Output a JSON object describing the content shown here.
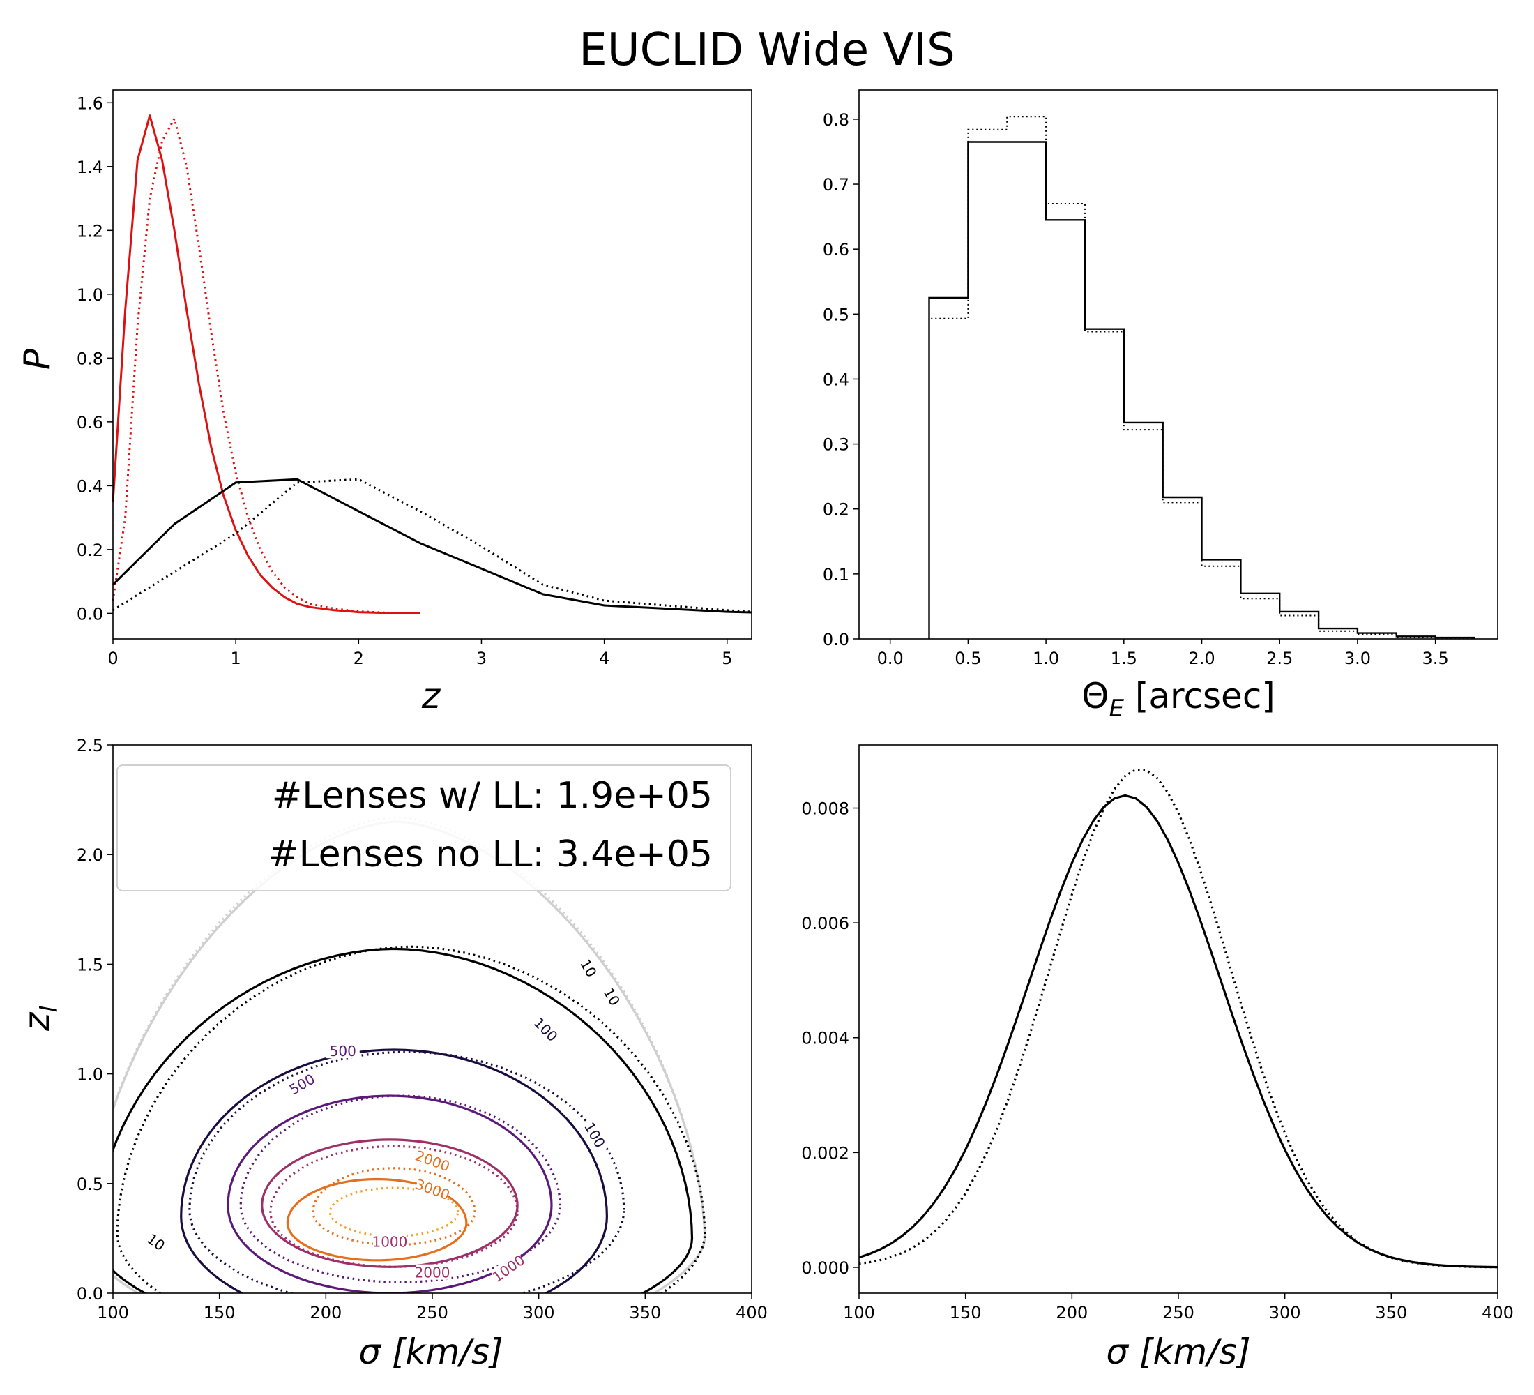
{
  "figure": {
    "title": "EUCLID Wide VIS"
  },
  "chart_data": [
    {
      "type": "line",
      "xlabel": "z",
      "ylabel": "P",
      "xlim": [
        0,
        5.2
      ],
      "ylim": [
        -0.08,
        1.64
      ],
      "xticks": [
        "0",
        "1",
        "2",
        "3",
        "4",
        "5"
      ],
      "yticks": [
        "0.0",
        "0.2",
        "0.4",
        "0.6",
        "0.8",
        "1.0",
        "1.2",
        "1.4",
        "1.6"
      ],
      "series": [
        {
          "color": "#dd1111",
          "dash": "solid",
          "x": [
            0,
            0.1,
            0.2,
            0.3,
            0.4,
            0.5,
            0.6,
            0.7,
            0.8,
            0.9,
            1.0,
            1.1,
            1.2,
            1.3,
            1.4,
            1.5,
            1.6,
            1.8,
            2.0,
            2.25,
            2.5
          ],
          "y": [
            0.35,
            0.95,
            1.42,
            1.56,
            1.42,
            1.2,
            0.95,
            0.72,
            0.52,
            0.37,
            0.26,
            0.18,
            0.12,
            0.08,
            0.05,
            0.03,
            0.02,
            0.01,
            0.004,
            0.001,
            0.0
          ]
        },
        {
          "color": "#dd1111",
          "dash": "dotted",
          "x": [
            0,
            0.1,
            0.2,
            0.3,
            0.4,
            0.5,
            0.6,
            0.7,
            0.8,
            0.9,
            1.0,
            1.1,
            1.2,
            1.3,
            1.4,
            1.5,
            1.6,
            1.8,
            2.0,
            2.25,
            2.5
          ],
          "y": [
            0.04,
            0.3,
            0.9,
            1.3,
            1.48,
            1.55,
            1.4,
            1.15,
            0.88,
            0.63,
            0.44,
            0.3,
            0.2,
            0.13,
            0.08,
            0.05,
            0.03,
            0.015,
            0.006,
            0.002,
            0.0
          ]
        },
        {
          "color": "#000000",
          "dash": "solid",
          "x": [
            0,
            0.5,
            1.0,
            1.5,
            2.0,
            2.5,
            3.0,
            3.5,
            4.0,
            4.5,
            5.0,
            5.2
          ],
          "y": [
            0.09,
            0.28,
            0.41,
            0.42,
            0.32,
            0.22,
            0.14,
            0.06,
            0.025,
            0.015,
            0.005,
            0.003
          ]
        },
        {
          "color": "#000000",
          "dash": "dotted",
          "x": [
            0,
            0.5,
            1.0,
            1.5,
            2.0,
            2.5,
            3.0,
            3.5,
            4.0,
            4.5,
            5.0,
            5.2
          ],
          "y": [
            0.01,
            0.13,
            0.25,
            0.41,
            0.42,
            0.32,
            0.21,
            0.09,
            0.04,
            0.025,
            0.01,
            0.005
          ]
        }
      ]
    },
    {
      "type": "histogram",
      "xlabel": "ΘE [arcsec]",
      "xlabel_main": "Θ",
      "xlabel_sub": "E",
      "xlabel_rest": " [arcsec]",
      "xlim": [
        -0.2,
        3.9
      ],
      "ylim": [
        0,
        0.845
      ],
      "xticks": [
        "0.0",
        "0.5",
        "1.0",
        "1.5",
        "2.0",
        "2.5",
        "3.0",
        "3.5"
      ],
      "yticks": [
        "0.0",
        "0.1",
        "0.2",
        "0.3",
        "0.4",
        "0.5",
        "0.6",
        "0.7",
        "0.8"
      ],
      "bin_edges": [
        0.25,
        0.5,
        0.75,
        1.0,
        1.25,
        1.5,
        1.75,
        2.0,
        2.25,
        2.5,
        2.75,
        3.0,
        3.25,
        3.5,
        3.75
      ],
      "series": [
        {
          "color": "#000000",
          "dash": "solid",
          "values": [
            0.525,
            0.765,
            0.765,
            0.645,
            0.477,
            0.333,
            0.218,
            0.122,
            0.07,
            0.042,
            0.016,
            0.009,
            0.004,
            0.002
          ]
        },
        {
          "color": "#000000",
          "dash": "dotted",
          "values": [
            0.493,
            0.784,
            0.804,
            0.67,
            0.473,
            0.322,
            0.21,
            0.112,
            0.062,
            0.036,
            0.012,
            0.007,
            0.003,
            0.001
          ]
        }
      ]
    },
    {
      "type": "contour",
      "xlabel": "σ [km/s]",
      "ylabel": "zl",
      "ylabel_main": "z",
      "ylabel_sub": "l",
      "xlim": [
        100,
        400
      ],
      "ylim": [
        0,
        2.5
      ],
      "xticks": [
        "100",
        "150",
        "200",
        "250",
        "300",
        "350",
        "400"
      ],
      "yticks": [
        "0.0",
        "0.5",
        "1.0",
        "1.5",
        "2.0",
        "2.5"
      ],
      "legend": [
        "#Lenses w/ LL: 1.9e+05",
        "#Lenses no LL: 3.4e+05"
      ],
      "levels": [
        {
          "value": "1",
          "color": "#cfcfcf",
          "solid": {
            "cx": 233,
            "cy": 0.25,
            "a": 145,
            "bt": 1.9,
            "bb": 0.55,
            "p": 1.7
          },
          "dotted": {
            "cx": 233,
            "cy": 0.25,
            "a": 145,
            "bt": 1.92,
            "bb": 0.55,
            "p": 1.7
          }
        },
        {
          "value": "10",
          "color": "#000000",
          "solid": {
            "cx": 232,
            "cy": 0.25,
            "a": 140,
            "bt": 1.32,
            "bb": 0.48,
            "p": 1.9
          },
          "dotted": {
            "cx": 240,
            "cy": 0.27,
            "a": 138,
            "bt": 1.31,
            "bb": 0.55,
            "p": 1.9
          }
        },
        {
          "value": "100",
          "color": "#1a0c3e",
          "solid": {
            "cx": 232,
            "cy": 0.35,
            "a": 100,
            "bt": 0.76,
            "bb": 0.5,
            "p": 2.0
          },
          "dotted": {
            "cx": 238,
            "cy": 0.38,
            "a": 102,
            "bt": 0.72,
            "bb": 0.45,
            "p": 2.0
          }
        },
        {
          "value": "500",
          "color": "#5c1a78",
          "solid": {
            "cx": 230,
            "cy": 0.4,
            "a": 76,
            "bt": 0.5,
            "bb": 0.4,
            "p": 2.0
          },
          "dotted": {
            "cx": 235,
            "cy": 0.4,
            "a": 75,
            "bt": 0.5,
            "bb": 0.35,
            "p": 2.0
          }
        },
        {
          "value": "1000",
          "color": "#9e3068",
          "solid": {
            "cx": 230,
            "cy": 0.4,
            "a": 60,
            "bt": 0.3,
            "bb": 0.28,
            "p": 2.0
          },
          "dotted": {
            "cx": 232,
            "cy": 0.37,
            "a": 58,
            "bt": 0.3,
            "bb": 0.25,
            "p": 2.0
          }
        },
        {
          "value": "2000",
          "color": "#e76e1b",
          "solid": {
            "cx": 224,
            "cy": 0.32,
            "a": 42,
            "bt": 0.2,
            "bb": 0.17,
            "p": 2.0
          },
          "dotted": {
            "cx": 232,
            "cy": 0.37,
            "a": 38,
            "bt": 0.2,
            "bb": 0.15,
            "p": 2.0
          }
        },
        {
          "value": "3000",
          "color": "#f2a020",
          "solid": null,
          "dotted": {
            "cx": 232,
            "cy": 0.37,
            "a": 30,
            "bt": 0.11,
            "bb": 0.11,
            "p": 2.0
          }
        }
      ],
      "contour_labels": [
        {
          "text": "10",
          "x": 323,
          "y": 1.48,
          "color": "#000000",
          "rot": 60
        },
        {
          "text": "10",
          "x": 334,
          "y": 1.35,
          "color": "#000000",
          "rot": 60
        },
        {
          "text": "10",
          "x": 120,
          "y": 0.23,
          "color": "#000000",
          "rot": 35
        },
        {
          "text": "100",
          "x": 303,
          "y": 1.2,
          "color": "#1a0c3e",
          "rot": 45
        },
        {
          "text": "100",
          "x": 326,
          "y": 0.72,
          "color": "#1a0c3e",
          "rot": 60
        },
        {
          "text": "500",
          "x": 208,
          "y": 1.1,
          "color": "#5c1a78",
          "rot": 0
        },
        {
          "text": "500",
          "x": 189,
          "y": 0.95,
          "color": "#5c1a78",
          "rot": -30
        },
        {
          "text": "1000",
          "x": 230,
          "y": 0.23,
          "color": "#9e3068",
          "rot": 0
        },
        {
          "text": "1000",
          "x": 286,
          "y": 0.11,
          "color": "#9e3068",
          "rot": -35
        },
        {
          "text": "2000",
          "x": 250,
          "y": 0.6,
          "color": "#e76e1b",
          "rot": 20
        },
        {
          "text": "2000",
          "x": 250,
          "y": 0.09,
          "color": "#9e3068",
          "rot": 0
        },
        {
          "text": "3000",
          "x": 250,
          "y": 0.47,
          "color": "#e76e1b",
          "rot": 20
        }
      ]
    },
    {
      "type": "line",
      "xlabel": "σ [km/s]",
      "xlim": [
        100,
        400
      ],
      "ylim": [
        -0.00045,
        0.0091
      ],
      "xticks": [
        "100",
        "150",
        "200",
        "250",
        "300",
        "350",
        "400"
      ],
      "yticks": [
        "0.000",
        "0.002",
        "0.004",
        "0.006",
        "0.008"
      ],
      "series": [
        {
          "color": "#000000",
          "dash": "solid",
          "mu": 225,
          "sigma": 45,
          "amp": 0.00822
        },
        {
          "color": "#000000",
          "dash": "dotted",
          "mu": 232,
          "sigma": 42,
          "amp": 0.00868
        }
      ]
    }
  ]
}
